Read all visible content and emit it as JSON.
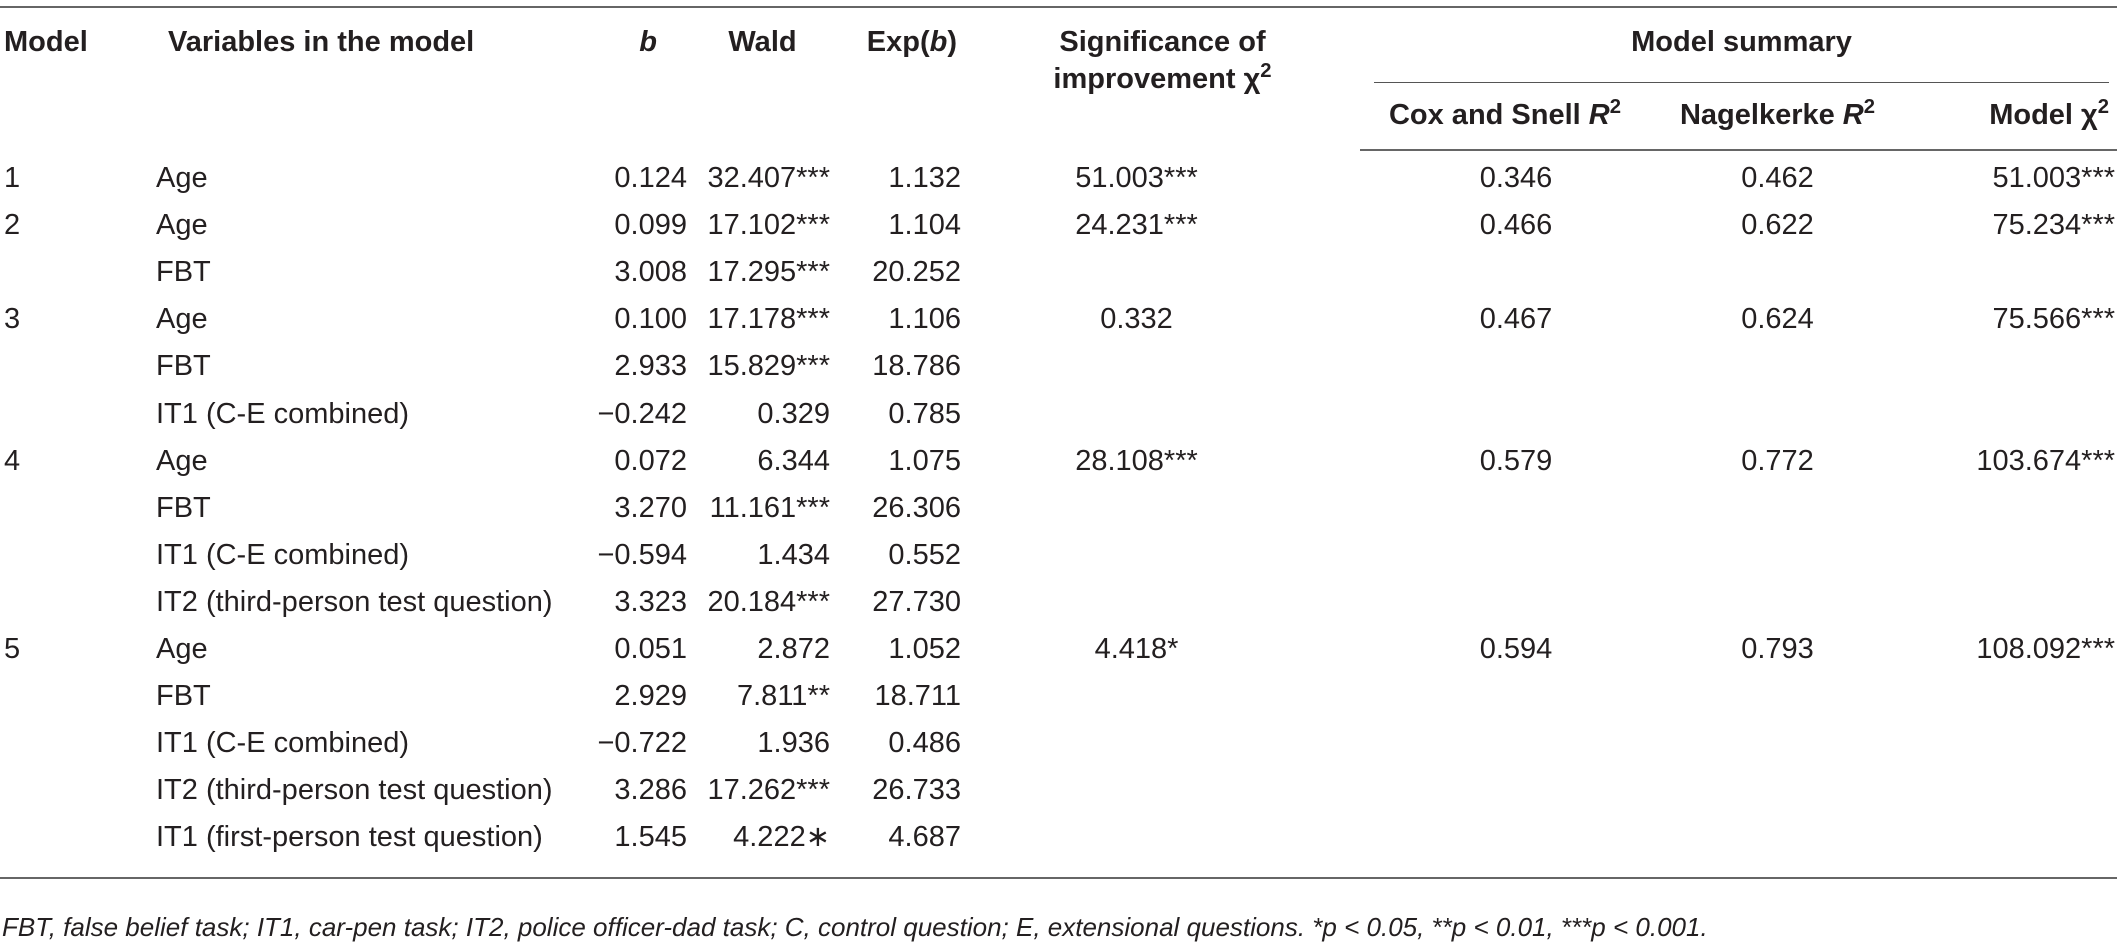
{
  "headers": {
    "model": "Model",
    "variables": "Variables in the model",
    "b": "b",
    "wald": "Wald",
    "expb_pre": "Exp(",
    "expb_it": "b",
    "expb_post": ")",
    "sig_line1": "Significance of",
    "sig_line2": "improvement χ",
    "sig_sup": "2",
    "model_summary": "Model summary",
    "cox_pre": "Cox and Snell ",
    "cox_it": "R",
    "cox_sup": "2",
    "nagel_pre": "Nagelkerke ",
    "nagel_it": "R",
    "nagel_sup": "2",
    "modelchi_pre": "Model χ",
    "modelchi_sup": "2"
  },
  "rows": [
    {
      "model": "1",
      "var": "Age",
      "b": "0.124",
      "wald": "32.407***",
      "exp": "1.132",
      "sig": "51.003***",
      "cox": "0.346",
      "nagel": "0.462",
      "chi": "51.003***"
    },
    {
      "model": "2",
      "var": "Age",
      "b": "0.099",
      "wald": "17.102***",
      "exp": "1.104",
      "sig": "24.231***",
      "cox": "0.466",
      "nagel": "0.622",
      "chi": "75.234***"
    },
    {
      "model": "",
      "var": "FBT",
      "b": "3.008",
      "wald": "17.295***",
      "exp": "20.252",
      "sig": "",
      "cox": "",
      "nagel": "",
      "chi": ""
    },
    {
      "model": "3",
      "var": "Age",
      "b": "0.100",
      "wald": "17.178***",
      "exp": "1.106",
      "sig": "0.332",
      "cox": "0.467",
      "nagel": "0.624",
      "chi": "75.566***"
    },
    {
      "model": "",
      "var": "FBT",
      "b": "2.933",
      "wald": "15.829***",
      "exp": "18.786",
      "sig": "",
      "cox": "",
      "nagel": "",
      "chi": ""
    },
    {
      "model": "",
      "var": "IT1 (C-E combined)",
      "b": "−0.242",
      "wald": "0.329",
      "exp": "0.785",
      "sig": "",
      "cox": "",
      "nagel": "",
      "chi": ""
    },
    {
      "model": "4",
      "var": "Age",
      "b": "0.072",
      "wald": "6.344",
      "exp": "1.075",
      "sig": "28.108***",
      "cox": "0.579",
      "nagel": "0.772",
      "chi": "103.674***"
    },
    {
      "model": "",
      "var": "FBT",
      "b": "3.270",
      "wald": "11.161***",
      "exp": "26.306",
      "sig": "",
      "cox": "",
      "nagel": "",
      "chi": ""
    },
    {
      "model": "",
      "var": "IT1 (C-E combined)",
      "b": "−0.594",
      "wald": "1.434",
      "exp": "0.552",
      "sig": "",
      "cox": "",
      "nagel": "",
      "chi": ""
    },
    {
      "model": "",
      "var": "IT2 (third-person test question)",
      "b": "3.323",
      "wald": "20.184***",
      "exp": "27.730",
      "sig": "",
      "cox": "",
      "nagel": "",
      "chi": ""
    },
    {
      "model": "5",
      "var": "Age",
      "b": "0.051",
      "wald": "2.872",
      "exp": "1.052",
      "sig": "4.418*",
      "cox": "0.594",
      "nagel": "0.793",
      "chi": "108.092***"
    },
    {
      "model": "",
      "var": "FBT",
      "b": "2.929",
      "wald": "7.811**",
      "exp": "18.711",
      "sig": "",
      "cox": "",
      "nagel": "",
      "chi": ""
    },
    {
      "model": "",
      "var": "IT1 (C-E combined)",
      "b": "−0.722",
      "wald": "1.936",
      "exp": "0.486",
      "sig": "",
      "cox": "",
      "nagel": "",
      "chi": ""
    },
    {
      "model": "",
      "var": "IT2 (third-person test question)",
      "b": "3.286",
      "wald": "17.262***",
      "exp": "26.733",
      "sig": "",
      "cox": "",
      "nagel": "",
      "chi": ""
    },
    {
      "model": "",
      "var": "IT1 (first-person test question)",
      "b": "1.545",
      "wald": "4.222∗",
      "exp": "4.687",
      "sig": "",
      "cox": "",
      "nagel": "",
      "chi": ""
    }
  ],
  "footnote": "FBT, false belief task; IT1, car-pen task; IT2, police officer-dad task; C, control question; E, extensional questions. *p < 0.05, **p < 0.01, ***p < 0.001."
}
